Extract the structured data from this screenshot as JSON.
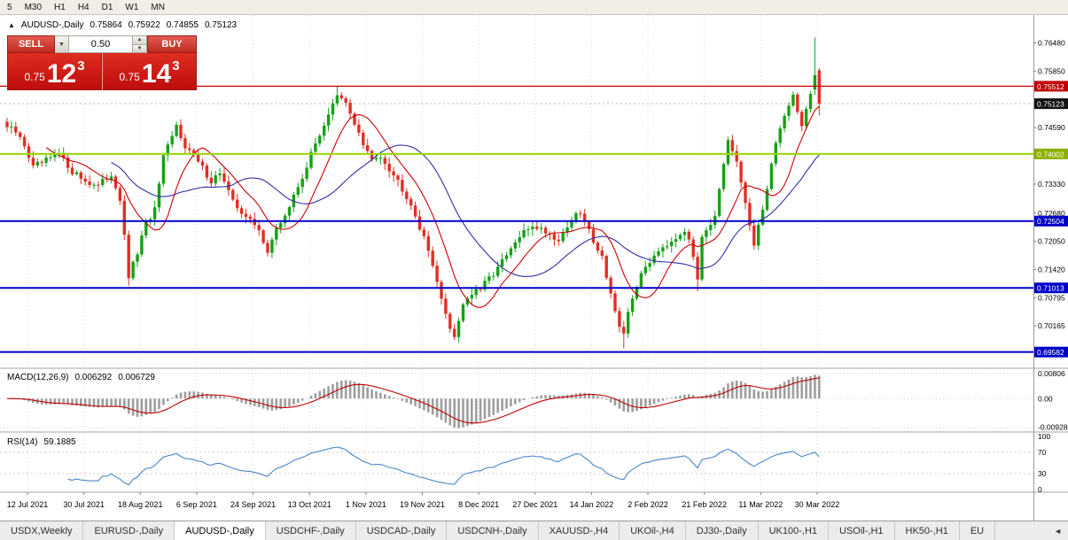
{
  "toolbar": {
    "timeframes": [
      "5",
      "M30",
      "H1",
      "H4",
      "D1",
      "W1",
      "MN"
    ]
  },
  "icons": {
    "collapse": "▲",
    "dropdown": "▼",
    "spin_up": "▲",
    "spin_down": "▼",
    "tab_scroll_left": "◄"
  },
  "chart_header": {
    "symbol": "AUDUSD-,Daily",
    "open": "0.75864",
    "high": "0.75922",
    "low": "0.74855",
    "close": "0.75123"
  },
  "trade_panel": {
    "sell_label": "SELL",
    "buy_label": "BUY",
    "volume": "0.50",
    "sell_quote": {
      "small": "0.75",
      "big": "12",
      "sup": "3"
    },
    "buy_quote": {
      "small": "0.75",
      "big": "14",
      "sup": "3"
    }
  },
  "macd_panel": {
    "title": "MACD(12,26,9)",
    "value_main": "0.006292",
    "value_signal": "0.006729",
    "scale": [
      "0.00806",
      "0.00",
      "-0.00928"
    ]
  },
  "rsi_panel": {
    "title": "RSI(14)",
    "value": "59.1885",
    "scale": [
      "100",
      "70",
      "30",
      "0"
    ]
  },
  "x_axis_labels": [
    "12 Jul 2021",
    "30 Jul 2021",
    "18 Aug 2021",
    "6 Sep 2021",
    "24 Sep 2021",
    "13 Oct 2021",
    "1 Nov 2021",
    "19 Nov 2021",
    "8 Dec 2021",
    "27 Dec 2021",
    "14 Jan 2022",
    "2 Feb 2022",
    "21 Feb 2022",
    "11 Mar 2022",
    "30 Mar 2022"
  ],
  "y_axis_ticks": [
    "0.76480",
    "0.75850",
    "0.74590",
    "0.73330",
    "0.72680",
    "0.72050",
    "0.71420",
    "0.70795",
    "0.70165"
  ],
  "price_badges": [
    {
      "label": "0.75512",
      "value": 0.75512,
      "bg": "#c00000"
    },
    {
      "label": "0.75123",
      "value": 0.75123,
      "bg": "#111111"
    },
    {
      "label": "0.74002",
      "value": 0.74002,
      "bg": "#8fae00"
    },
    {
      "label": "0.72504",
      "value": 0.72504,
      "bg": "#0000c8"
    },
    {
      "label": "0.71013",
      "value": 0.71013,
      "bg": "#0000c8"
    },
    {
      "label": "0.69582",
      "value": 0.69582,
      "bg": "#0000c8"
    }
  ],
  "tabs": [
    "USDX,Weekly",
    "EURUSD-,Daily",
    "AUDUSD-,Daily",
    "USDCHF-,Daily",
    "USDCAD-,Daily",
    "USDCNH-,Daily",
    "XAUUSD-,H4",
    "UKOil-,H4",
    "DJ30-,Daily",
    "UK100-,H1",
    "USOil-,H1",
    "HK50-,H1",
    "EU"
  ],
  "active_tab": "AUDUSD-,Daily",
  "chart_data": {
    "type": "candlestick",
    "symbol": "AUDUSD",
    "timeframe": "Daily",
    "num_candles": 188,
    "price_axis_range": {
      "top": 0.771,
      "bottom": 0.6924
    },
    "current_price": 0.75123,
    "horizontal_levels": [
      {
        "price": 0.75512,
        "color": "#cc0000",
        "width": 1.3
      },
      {
        "price": 0.74002,
        "color": "#97d700",
        "width": 2
      },
      {
        "price": 0.72504,
        "color": "#0000cd",
        "width": 2
      },
      {
        "price": 0.71013,
        "color": "#0000cd",
        "width": 2
      },
      {
        "price": 0.69582,
        "color": "#0000cd",
        "width": 2
      }
    ],
    "close_anchors": [
      [
        0,
        0.746
      ],
      [
        2,
        0.7448
      ],
      [
        4,
        0.742
      ],
      [
        6,
        0.737
      ],
      [
        9,
        0.7385
      ],
      [
        12,
        0.7398
      ],
      [
        15,
        0.7362
      ],
      [
        18,
        0.734
      ],
      [
        21,
        0.7328
      ],
      [
        24,
        0.7355
      ],
      [
        26,
        0.73
      ],
      [
        28,
        0.7125
      ],
      [
        30,
        0.718
      ],
      [
        32,
        0.7245
      ],
      [
        34,
        0.7275
      ],
      [
        36,
        0.739
      ],
      [
        39,
        0.7462
      ],
      [
        41,
        0.742
      ],
      [
        44,
        0.7382
      ],
      [
        47,
        0.734
      ],
      [
        49,
        0.736
      ],
      [
        52,
        0.7292
      ],
      [
        55,
        0.7262
      ],
      [
        58,
        0.7228
      ],
      [
        60,
        0.7185
      ],
      [
        62,
        0.723
      ],
      [
        65,
        0.7282
      ],
      [
        68,
        0.735
      ],
      [
        71,
        0.7422
      ],
      [
        74,
        0.749
      ],
      [
        76,
        0.7528
      ],
      [
        78,
        0.7512
      ],
      [
        80,
        0.747
      ],
      [
        82,
        0.742
      ],
      [
        84,
        0.7385
      ],
      [
        86,
        0.7398
      ],
      [
        88,
        0.7368
      ],
      [
        90,
        0.734
      ],
      [
        93,
        0.729
      ],
      [
        96,
        0.721
      ],
      [
        98,
        0.7158
      ],
      [
        100,
        0.7072
      ],
      [
        102,
        0.7015
      ],
      [
        103,
        0.6992
      ],
      [
        105,
        0.7068
      ],
      [
        107,
        0.7088
      ],
      [
        109,
        0.7098
      ],
      [
        112,
        0.7135
      ],
      [
        115,
        0.7172
      ],
      [
        118,
        0.7215
      ],
      [
        121,
        0.7242
      ],
      [
        124,
        0.7228
      ],
      [
        127,
        0.7208
      ],
      [
        130,
        0.7255
      ],
      [
        132,
        0.7268
      ],
      [
        134,
        0.7228
      ],
      [
        137,
        0.717
      ],
      [
        139,
        0.709
      ],
      [
        141,
        0.7008
      ],
      [
        142,
        0.6992
      ],
      [
        143,
        0.7048
      ],
      [
        145,
        0.7108
      ],
      [
        147,
        0.7148
      ],
      [
        150,
        0.7188
      ],
      [
        153,
        0.7208
      ],
      [
        156,
        0.7232
      ],
      [
        158,
        0.7172
      ],
      [
        159,
        0.7125
      ],
      [
        160,
        0.7222
      ],
      [
        163,
        0.7258
      ],
      [
        166,
        0.7428
      ],
      [
        168,
        0.738
      ],
      [
        170,
        0.7292
      ],
      [
        172,
        0.7192
      ],
      [
        174,
        0.7278
      ],
      [
        176,
        0.7378
      ],
      [
        178,
        0.7462
      ],
      [
        180,
        0.7508
      ],
      [
        181,
        0.7532
      ],
      [
        183,
        0.7465
      ],
      [
        184,
        0.7498
      ],
      [
        185,
        0.7538
      ],
      [
        186,
        0.7576
      ],
      [
        187,
        0.75123
      ]
    ],
    "wick_overrides": [
      [
        28,
        "low",
        0.7106
      ],
      [
        76,
        "high",
        0.75512
      ],
      [
        103,
        "low",
        0.6985
      ],
      [
        142,
        "low",
        0.6966
      ],
      [
        159,
        "low",
        0.7094
      ]
    ],
    "last_candles": [
      {
        "open": 0.7544,
        "high": 0.766,
        "low": 0.7532,
        "close": 0.7576
      },
      {
        "open": 0.75864,
        "high": 0.75922,
        "low": 0.74855,
        "close": 0.75123
      }
    ],
    "ma_fast": {
      "period": 10,
      "color": "#cc0000"
    },
    "ma_slow": {
      "period": 25,
      "color": "#2f2fa8"
    },
    "macd": {
      "fast": 12,
      "slow": 26,
      "signal": 9,
      "current_macd": 0.006292,
      "current_signal": 0.006729,
      "axis_top": 0.0095,
      "axis_bottom": -0.0105,
      "scale_ticks": [
        0.00806,
        0,
        -0.00928
      ],
      "histogram_color": "#9e9e9e",
      "signal_color": "#c00000"
    },
    "rsi": {
      "period": 14,
      "current": 59.1885,
      "levels": [
        70,
        30
      ],
      "axis_ticks": [
        100,
        70,
        30,
        0
      ],
      "line_color": "#4a86c8"
    },
    "candle_up_color": "#17a017",
    "candle_down_color": "#e02f24"
  }
}
